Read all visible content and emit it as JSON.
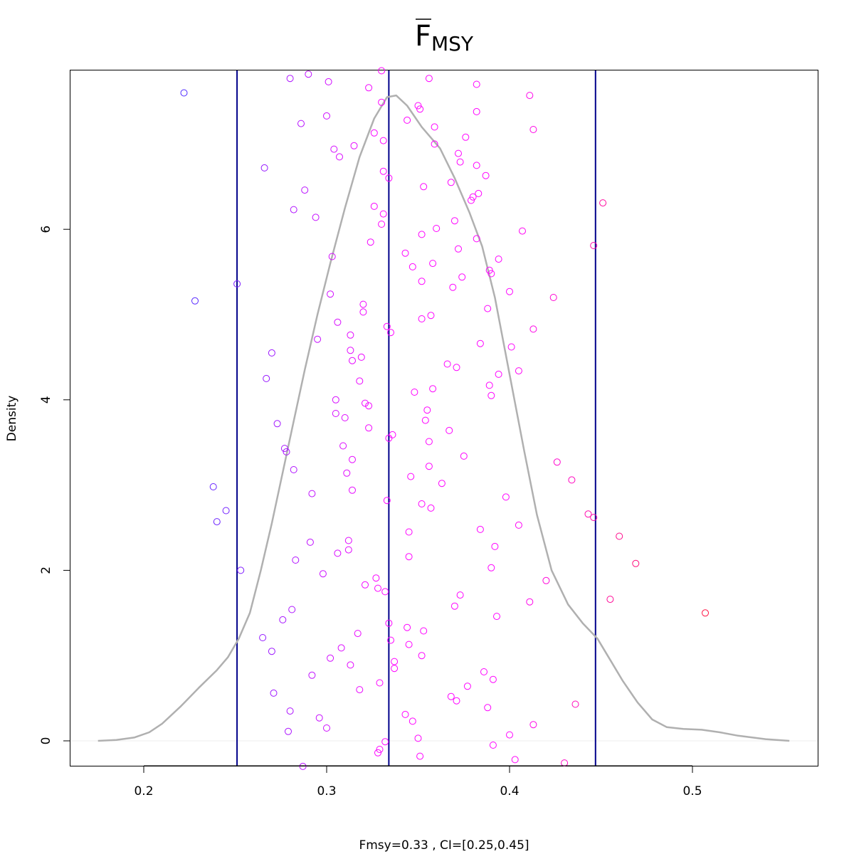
{
  "chart_data": {
    "type": "scatter",
    "title": {
      "main": "F",
      "subscript": "MSY",
      "overline": true
    },
    "xlabel": "Fmsy=0.33 , CI=[0.25,0.45]",
    "ylabel": "Density",
    "xlim": [
      0.16,
      0.57
    ],
    "ylim": [
      -0.6,
      7.9
    ],
    "x_ticks": [
      0.2,
      0.3,
      0.4,
      0.5
    ],
    "x_tick_labels": [
      "0.2",
      "0.3",
      "0.4",
      "0.5"
    ],
    "y_ticks": [
      0,
      2,
      4,
      6
    ],
    "y_tick_labels": [
      "0",
      "2",
      "4",
      "6"
    ],
    "grid": false,
    "legend": "none",
    "colors": {
      "axis": "#000000",
      "density_line": "#b0b0b0",
      "ci_lines": "#00008b",
      "point_low": "#4a2aff",
      "point_mid": "#ff00ff",
      "point_high": "#ff1040",
      "zero_line": "#eeeeee"
    },
    "vertical_lines": [
      {
        "x": 0.251,
        "kind": "lower-ci"
      },
      {
        "x": 0.334,
        "kind": "estimate"
      },
      {
        "x": 0.447,
        "kind": "upper-ci"
      }
    ],
    "density_curve": [
      [
        0.175,
        0.0
      ],
      [
        0.185,
        0.01
      ],
      [
        0.195,
        0.04
      ],
      [
        0.203,
        0.1
      ],
      [
        0.21,
        0.2
      ],
      [
        0.22,
        0.4
      ],
      [
        0.23,
        0.62
      ],
      [
        0.24,
        0.83
      ],
      [
        0.246,
        0.98
      ],
      [
        0.252,
        1.2
      ],
      [
        0.258,
        1.5
      ],
      [
        0.264,
        2.0
      ],
      [
        0.27,
        2.55
      ],
      [
        0.276,
        3.15
      ],
      [
        0.282,
        3.75
      ],
      [
        0.288,
        4.35
      ],
      [
        0.295,
        5.0
      ],
      [
        0.302,
        5.6
      ],
      [
        0.31,
        6.25
      ],
      [
        0.318,
        6.85
      ],
      [
        0.326,
        7.3
      ],
      [
        0.333,
        7.55
      ],
      [
        0.338,
        7.57
      ],
      [
        0.344,
        7.45
      ],
      [
        0.352,
        7.2
      ],
      [
        0.362,
        6.95
      ],
      [
        0.37,
        6.6
      ],
      [
        0.378,
        6.2
      ],
      [
        0.385,
        5.8
      ],
      [
        0.392,
        5.2
      ],
      [
        0.4,
        4.3
      ],
      [
        0.408,
        3.4
      ],
      [
        0.415,
        2.65
      ],
      [
        0.423,
        2.0
      ],
      [
        0.432,
        1.6
      ],
      [
        0.44,
        1.38
      ],
      [
        0.448,
        1.2
      ],
      [
        0.455,
        0.95
      ],
      [
        0.462,
        0.7
      ],
      [
        0.47,
        0.45
      ],
      [
        0.478,
        0.25
      ],
      [
        0.486,
        0.16
      ],
      [
        0.495,
        0.14
      ],
      [
        0.505,
        0.13
      ],
      [
        0.515,
        0.1
      ],
      [
        0.525,
        0.06
      ],
      [
        0.54,
        0.02
      ],
      [
        0.553,
        0.0
      ]
    ],
    "points": [
      [
        0.222,
        7.6
      ],
      [
        0.228,
        5.16
      ],
      [
        0.238,
        2.98
      ],
      [
        0.24,
        2.57
      ],
      [
        0.245,
        2.7
      ],
      [
        0.251,
        5.36
      ],
      [
        0.253,
        2.0
      ],
      [
        0.265,
        1.21
      ],
      [
        0.266,
        6.72
      ],
      [
        0.267,
        4.25
      ],
      [
        0.27,
        1.05
      ],
      [
        0.27,
        4.55
      ],
      [
        0.271,
        0.56
      ],
      [
        0.273,
        3.72
      ],
      [
        0.276,
        1.42
      ],
      [
        0.277,
        3.43
      ],
      [
        0.278,
        3.39
      ],
      [
        0.279,
        0.11
      ],
      [
        0.28,
        0.35
      ],
      [
        0.28,
        7.77
      ],
      [
        0.281,
        1.54
      ],
      [
        0.282,
        6.23
      ],
      [
        0.282,
        3.18
      ],
      [
        0.283,
        2.12
      ],
      [
        0.286,
        7.24
      ],
      [
        0.287,
        -0.3
      ],
      [
        0.288,
        6.46
      ],
      [
        0.29,
        7.82
      ],
      [
        0.291,
        2.33
      ],
      [
        0.292,
        0.77
      ],
      [
        0.292,
        2.9
      ],
      [
        0.294,
        6.14
      ],
      [
        0.295,
        4.71
      ],
      [
        0.296,
        0.27
      ],
      [
        0.298,
        1.96
      ],
      [
        0.3,
        7.33
      ],
      [
        0.3,
        0.15
      ],
      [
        0.301,
        7.73
      ],
      [
        0.302,
        0.97
      ],
      [
        0.302,
        5.24
      ],
      [
        0.303,
        5.68
      ],
      [
        0.304,
        6.94
      ],
      [
        0.305,
        4.0
      ],
      [
        0.305,
        3.84
      ],
      [
        0.306,
        4.91
      ],
      [
        0.306,
        2.2
      ],
      [
        0.307,
        6.85
      ],
      [
        0.308,
        1.09
      ],
      [
        0.309,
        3.46
      ],
      [
        0.31,
        3.79
      ],
      [
        0.311,
        3.14
      ],
      [
        0.312,
        2.35
      ],
      [
        0.312,
        2.24
      ],
      [
        0.313,
        0.89
      ],
      [
        0.313,
        4.58
      ],
      [
        0.313,
        4.76
      ],
      [
        0.314,
        4.46
      ],
      [
        0.314,
        3.3
      ],
      [
        0.314,
        2.94
      ],
      [
        0.315,
        6.98
      ],
      [
        0.317,
        1.26
      ],
      [
        0.318,
        0.6
      ],
      [
        0.318,
        4.22
      ],
      [
        0.319,
        4.5
      ],
      [
        0.32,
        5.12
      ],
      [
        0.32,
        5.03
      ],
      [
        0.321,
        3.96
      ],
      [
        0.321,
        1.83
      ],
      [
        0.323,
        7.66
      ],
      [
        0.323,
        3.93
      ],
      [
        0.323,
        3.67
      ],
      [
        0.324,
        5.85
      ],
      [
        0.326,
        7.13
      ],
      [
        0.326,
        6.27
      ],
      [
        0.327,
        1.91
      ],
      [
        0.328,
        1.79
      ],
      [
        0.328,
        -0.14
      ],
      [
        0.329,
        -0.1
      ],
      [
        0.329,
        0.68
      ],
      [
        0.33,
        7.86
      ],
      [
        0.33,
        6.06
      ],
      [
        0.33,
        7.49
      ],
      [
        0.331,
        7.04
      ],
      [
        0.331,
        6.68
      ],
      [
        0.331,
        6.18
      ],
      [
        0.332,
        -0.01
      ],
      [
        0.332,
        1.75
      ],
      [
        0.333,
        2.82
      ],
      [
        0.333,
        4.86
      ],
      [
        0.334,
        1.38
      ],
      [
        0.334,
        3.55
      ],
      [
        0.334,
        6.6
      ],
      [
        0.335,
        1.18
      ],
      [
        0.335,
        4.79
      ],
      [
        0.336,
        3.59
      ],
      [
        0.337,
        0.93
      ],
      [
        0.337,
        0.85
      ],
      [
        0.343,
        0.31
      ],
      [
        0.343,
        5.72
      ],
      [
        0.344,
        7.28
      ],
      [
        0.344,
        1.33
      ],
      [
        0.345,
        1.13
      ],
      [
        0.345,
        2.16
      ],
      [
        0.345,
        2.45
      ],
      [
        0.346,
        3.1
      ],
      [
        0.347,
        0.23
      ],
      [
        0.347,
        5.56
      ],
      [
        0.348,
        4.09
      ],
      [
        0.35,
        7.45
      ],
      [
        0.35,
        0.03
      ],
      [
        0.351,
        7.41
      ],
      [
        0.351,
        -0.18
      ],
      [
        0.352,
        5.39
      ],
      [
        0.352,
        2.78
      ],
      [
        0.352,
        4.95
      ],
      [
        0.352,
        5.94
      ],
      [
        0.352,
        1.0
      ],
      [
        0.353,
        6.5
      ],
      [
        0.353,
        1.29
      ],
      [
        0.354,
        3.76
      ],
      [
        0.355,
        3.88
      ],
      [
        0.356,
        7.77
      ],
      [
        0.356,
        3.51
      ],
      [
        0.356,
        3.22
      ],
      [
        0.357,
        4.99
      ],
      [
        0.357,
        2.73
      ],
      [
        0.358,
        5.6
      ],
      [
        0.358,
        4.13
      ],
      [
        0.359,
        7.2
      ],
      [
        0.359,
        7.0
      ],
      [
        0.36,
        6.01
      ],
      [
        0.363,
        3.02
      ],
      [
        0.366,
        4.42
      ],
      [
        0.367,
        3.64
      ],
      [
        0.368,
        0.52
      ],
      [
        0.368,
        6.55
      ],
      [
        0.369,
        5.32
      ],
      [
        0.37,
        6.1
      ],
      [
        0.37,
        1.58
      ],
      [
        0.371,
        4.38
      ],
      [
        0.371,
        0.47
      ],
      [
        0.372,
        6.89
      ],
      [
        0.372,
        5.77
      ],
      [
        0.373,
        6.79
      ],
      [
        0.373,
        1.71
      ],
      [
        0.374,
        5.44
      ],
      [
        0.375,
        3.34
      ],
      [
        0.376,
        7.08
      ],
      [
        0.377,
        0.64
      ],
      [
        0.379,
        6.34
      ],
      [
        0.38,
        6.38
      ],
      [
        0.382,
        7.7
      ],
      [
        0.382,
        7.38
      ],
      [
        0.382,
        6.75
      ],
      [
        0.382,
        5.89
      ],
      [
        0.383,
        6.42
      ],
      [
        0.384,
        4.66
      ],
      [
        0.384,
        2.48
      ],
      [
        0.386,
        0.81
      ],
      [
        0.387,
        6.63
      ],
      [
        0.388,
        5.07
      ],
      [
        0.388,
        0.39
      ],
      [
        0.389,
        5.52
      ],
      [
        0.389,
        4.17
      ],
      [
        0.39,
        5.48
      ],
      [
        0.39,
        4.05
      ],
      [
        0.39,
        2.03
      ],
      [
        0.391,
        0.72
      ],
      [
        0.391,
        -0.05
      ],
      [
        0.392,
        2.28
      ],
      [
        0.393,
        1.46
      ],
      [
        0.394,
        5.65
      ],
      [
        0.394,
        4.3
      ],
      [
        0.398,
        2.86
      ],
      [
        0.4,
        0.07
      ],
      [
        0.4,
        5.27
      ],
      [
        0.401,
        4.62
      ],
      [
        0.403,
        -0.22
      ],
      [
        0.405,
        4.34
      ],
      [
        0.405,
        2.53
      ],
      [
        0.407,
        5.98
      ],
      [
        0.411,
        7.57
      ],
      [
        0.411,
        1.63
      ],
      [
        0.413,
        7.17
      ],
      [
        0.413,
        4.83
      ],
      [
        0.413,
        0.19
      ],
      [
        0.42,
        1.88
      ],
      [
        0.424,
        5.2
      ],
      [
        0.426,
        3.27
      ],
      [
        0.43,
        -0.26
      ],
      [
        0.434,
        3.06
      ],
      [
        0.436,
        0.43
      ],
      [
        0.443,
        2.66
      ],
      [
        0.446,
        2.62
      ],
      [
        0.446,
        5.81
      ],
      [
        0.451,
        6.31
      ],
      [
        0.455,
        1.66
      ],
      [
        0.46,
        2.4
      ],
      [
        0.469,
        2.08
      ],
      [
        0.507,
        1.5
      ]
    ]
  }
}
